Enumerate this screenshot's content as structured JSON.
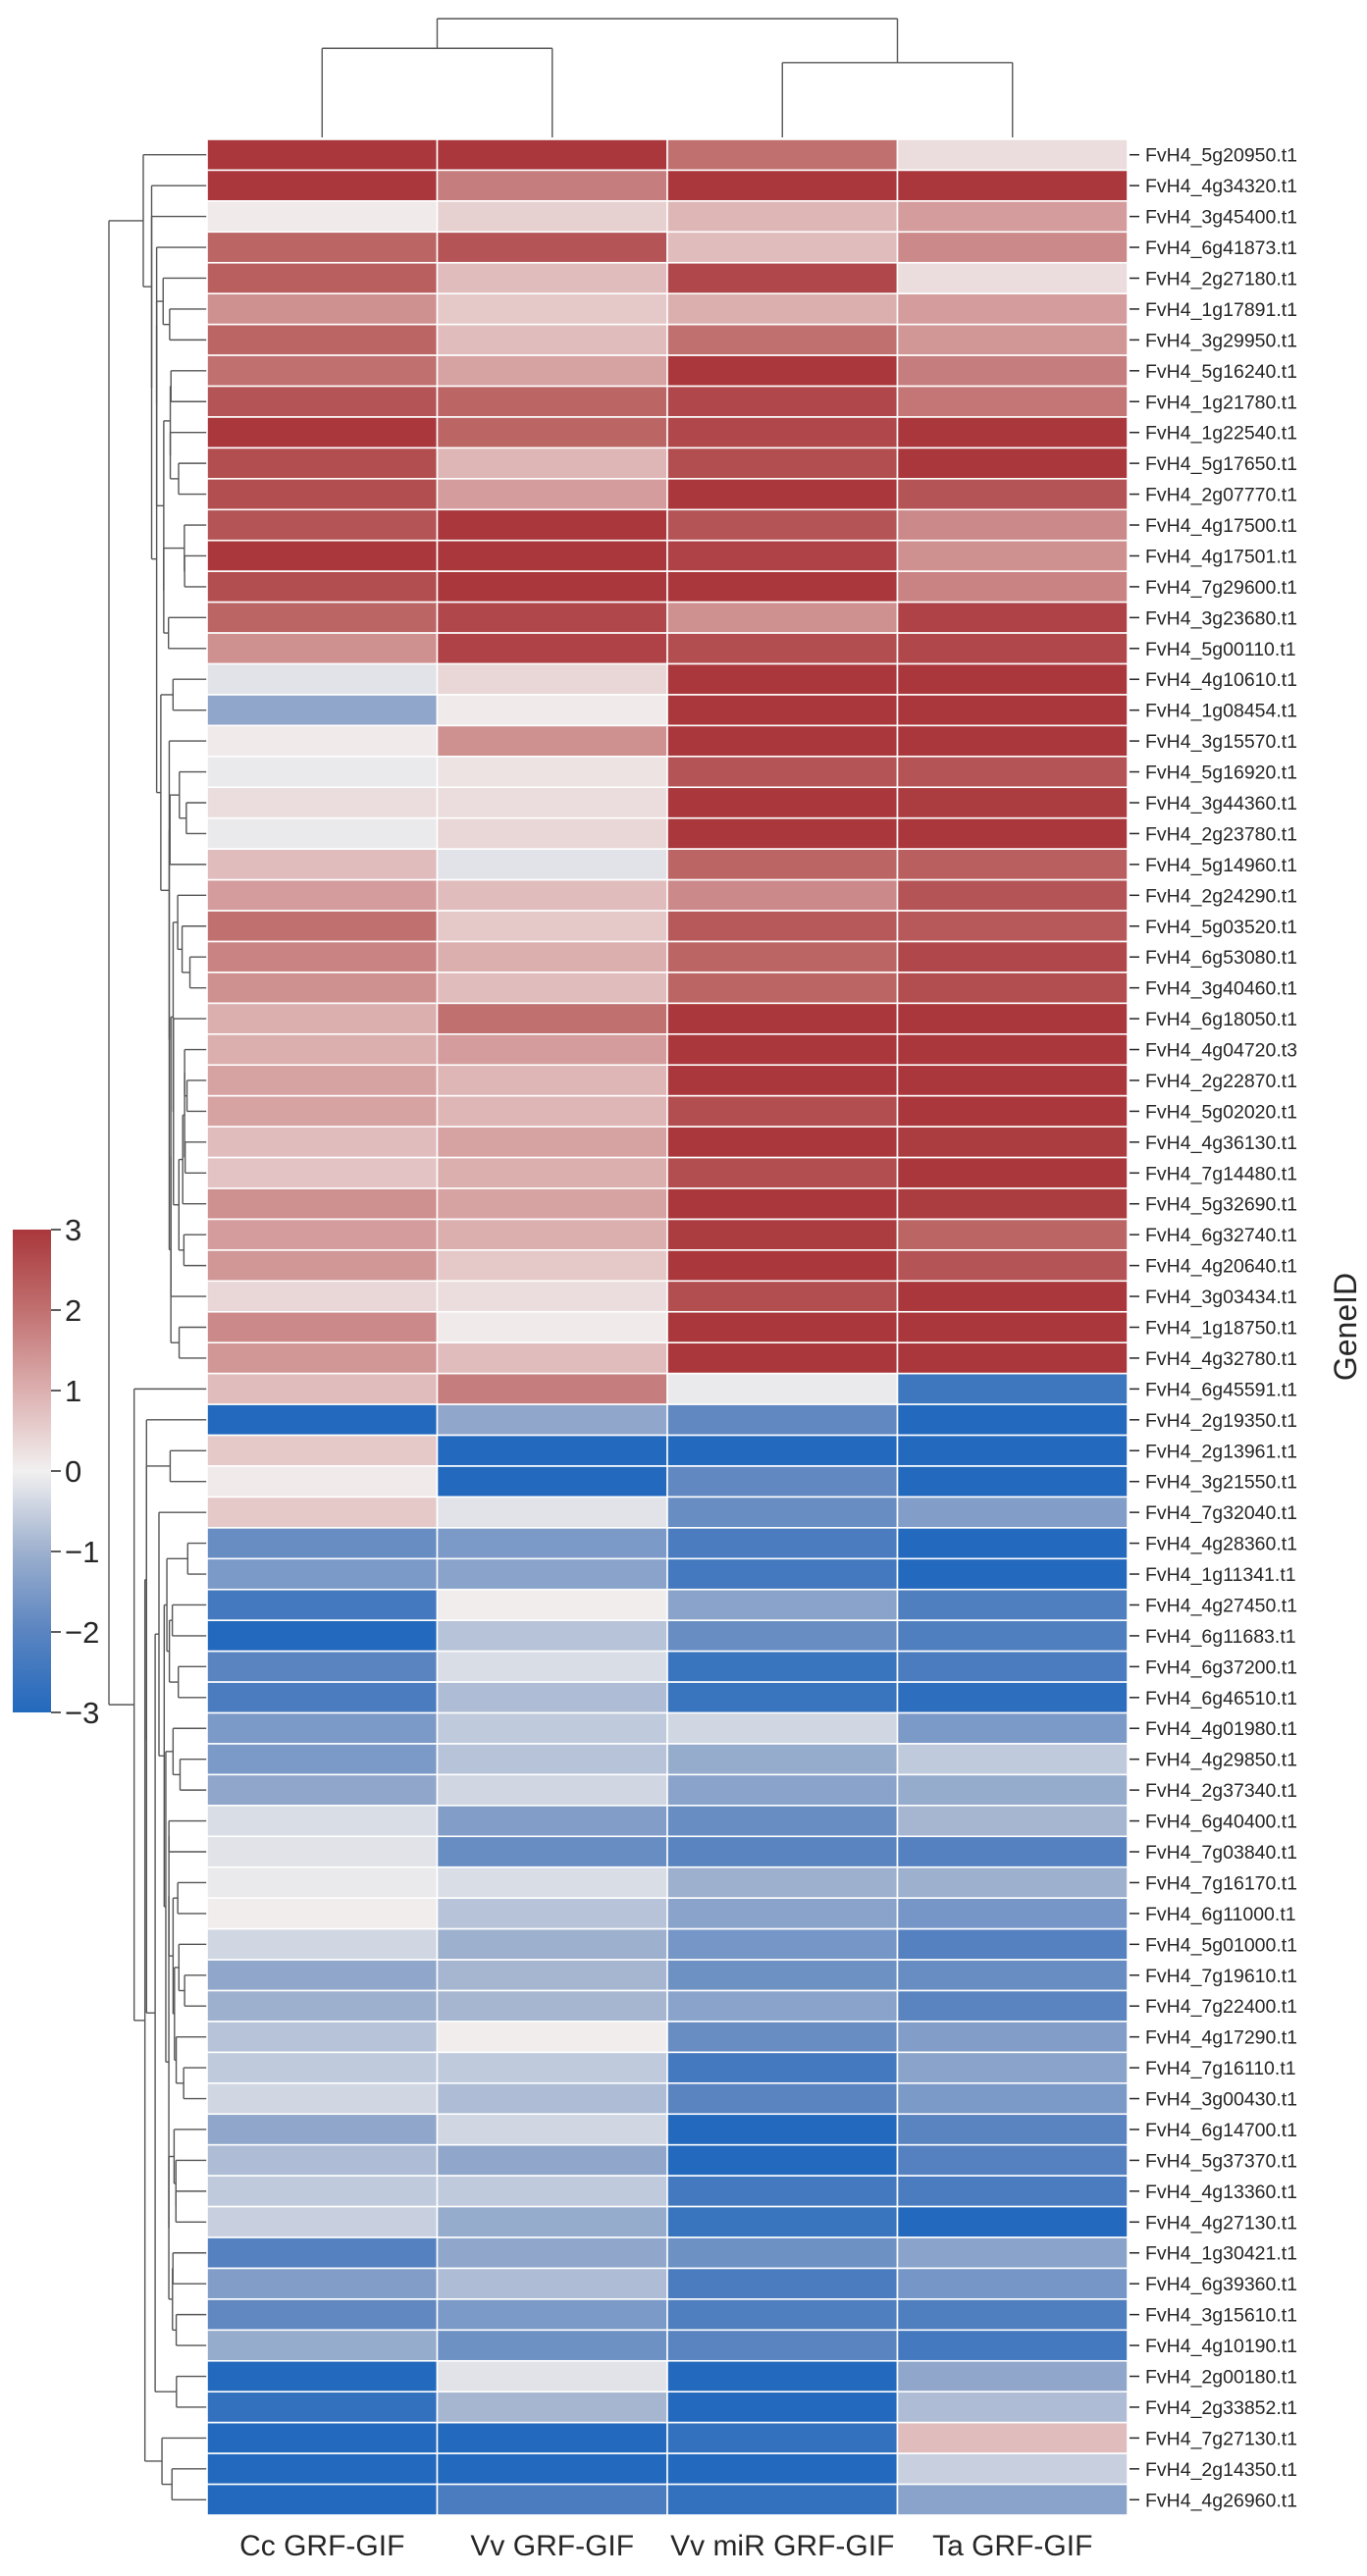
{
  "chart_data": {
    "type": "heatmap",
    "title": "",
    "xlabel": "",
    "ylabel": "GeneID",
    "columns": [
      "Cc GRF-GIF",
      "Vv GRF-GIF",
      "Vv miR GRF-GIF",
      "Ta GRF-GIF"
    ],
    "column_dendrogram": {
      "merges": [
        {
          "left": [
            0
          ],
          "right": [
            1
          ],
          "height": 0.75
        },
        {
          "left": [
            2
          ],
          "right": [
            3
          ],
          "height": 0.63
        },
        {
          "left": [
            0,
            1
          ],
          "right": [
            2,
            3
          ],
          "height": 1.0
        }
      ]
    },
    "colorbar": {
      "vmin": -3,
      "vmax": 3,
      "ticks": [
        3,
        2,
        1,
        0,
        -1,
        -2,
        -3
      ],
      "tick_labels": [
        "3",
        "2",
        "1",
        "0",
        "−1",
        "−2",
        "−3"
      ],
      "colors": {
        "low": "#2369BD",
        "mid": "#F2F0F0",
        "high": "#A9373B"
      },
      "placement": "left"
    },
    "rows": [
      {
        "gene": "FvH4_5g20950.t1",
        "values": [
          3.0,
          3.0,
          2.0,
          0.3
        ]
      },
      {
        "gene": "FvH4_4g34320.t1",
        "values": [
          3.0,
          1.8,
          3.0,
          3.0
        ]
      },
      {
        "gene": "FvH4_3g45400.t1",
        "values": [
          0.1,
          0.5,
          0.9,
          1.3
        ]
      },
      {
        "gene": "FvH4_6g41873.t1",
        "values": [
          2.2,
          2.5,
          0.8,
          1.6
        ]
      },
      {
        "gene": "FvH4_2g27180.t1",
        "values": [
          2.3,
          0.8,
          2.7,
          0.3
        ]
      },
      {
        "gene": "FvH4_1g17891.t1",
        "values": [
          1.5,
          0.6,
          1.0,
          1.3
        ]
      },
      {
        "gene": "FvH4_3g29950.t1",
        "values": [
          2.2,
          0.8,
          2.0,
          1.4
        ]
      },
      {
        "gene": "FvH4_5g16240.t1",
        "values": [
          2.0,
          1.2,
          3.0,
          1.8
        ]
      },
      {
        "gene": "FvH4_1g21780.t1",
        "values": [
          2.5,
          2.2,
          2.7,
          1.9
        ]
      },
      {
        "gene": "FvH4_1g22540.t1",
        "values": [
          3.0,
          2.2,
          2.7,
          3.0
        ]
      },
      {
        "gene": "FvH4_5g17650.t1",
        "values": [
          2.6,
          0.9,
          2.6,
          3.0
        ]
      },
      {
        "gene": "FvH4_2g07770.t1",
        "values": [
          2.6,
          1.3,
          3.0,
          2.5
        ]
      },
      {
        "gene": "FvH4_4g17500.t1",
        "values": [
          2.5,
          3.0,
          2.5,
          1.6
        ]
      },
      {
        "gene": "FvH4_4g17501.t1",
        "values": [
          3.0,
          3.0,
          2.8,
          1.5
        ]
      },
      {
        "gene": "FvH4_7g29600.t1",
        "values": [
          2.6,
          3.0,
          3.0,
          1.7
        ]
      },
      {
        "gene": "FvH4_3g23680.t1",
        "values": [
          2.2,
          2.7,
          1.5,
          2.8
        ]
      },
      {
        "gene": "FvH4_5g00110.t1",
        "values": [
          1.5,
          2.8,
          2.6,
          2.7
        ]
      },
      {
        "gene": "FvH4_4g10610.t1",
        "values": [
          -0.2,
          0.4,
          3.0,
          3.0
        ]
      },
      {
        "gene": "FvH4_1g08454.t1",
        "values": [
          -1.2,
          0.1,
          3.0,
          3.0
        ]
      },
      {
        "gene": "FvH4_3g15570.t1",
        "values": [
          0.1,
          1.5,
          3.0,
          3.0
        ]
      },
      {
        "gene": "FvH4_5g16920.t1",
        "values": [
          -0.1,
          0.2,
          2.5,
          2.5
        ]
      },
      {
        "gene": "FvH4_3g44360.t1",
        "values": [
          0.3,
          0.3,
          3.0,
          2.9
        ]
      },
      {
        "gene": "FvH4_2g23780.t1",
        "values": [
          -0.1,
          0.4,
          3.0,
          3.0
        ]
      },
      {
        "gene": "FvH4_5g14960.t1",
        "values": [
          0.8,
          -0.2,
          2.2,
          2.3
        ]
      },
      {
        "gene": "FvH4_2g24290.t1",
        "values": [
          1.3,
          0.8,
          1.6,
          2.5
        ]
      },
      {
        "gene": "FvH4_5g03520.t1",
        "values": [
          2.0,
          0.6,
          2.4,
          2.4
        ]
      },
      {
        "gene": "FvH4_6g53080.t1",
        "values": [
          1.7,
          1.0,
          2.2,
          2.7
        ]
      },
      {
        "gene": "FvH4_3g40460.t1",
        "values": [
          1.5,
          0.8,
          2.2,
          2.6
        ]
      },
      {
        "gene": "FvH4_6g18050.t1",
        "values": [
          1.0,
          2.0,
          3.0,
          3.0
        ]
      },
      {
        "gene": "FvH4_4g04720.t3",
        "values": [
          1.0,
          1.3,
          3.0,
          3.0
        ]
      },
      {
        "gene": "FvH4_2g22870.t1",
        "values": [
          1.2,
          0.9,
          3.0,
          3.0
        ]
      },
      {
        "gene": "FvH4_5g02020.t1",
        "values": [
          1.2,
          0.9,
          2.6,
          3.0
        ]
      },
      {
        "gene": "FvH4_4g36130.t1",
        "values": [
          0.8,
          1.2,
          3.0,
          2.9
        ]
      },
      {
        "gene": "FvH4_7g14480.t1",
        "values": [
          0.7,
          1.0,
          2.6,
          3.0
        ]
      },
      {
        "gene": "FvH4_5g32690.t1",
        "values": [
          1.5,
          1.2,
          3.0,
          2.9
        ]
      },
      {
        "gene": "FvH4_6g32740.t1",
        "values": [
          1.3,
          1.0,
          2.9,
          2.2
        ]
      },
      {
        "gene": "FvH4_4g20640.t1",
        "values": [
          1.4,
          0.6,
          3.0,
          2.5
        ]
      },
      {
        "gene": "FvH4_3g03434.t1",
        "values": [
          0.4,
          0.3,
          2.6,
          3.0
        ]
      },
      {
        "gene": "FvH4_1g18750.t1",
        "values": [
          1.6,
          0.1,
          3.0,
          3.0
        ]
      },
      {
        "gene": "FvH4_4g32780.t1",
        "values": [
          1.4,
          0.8,
          3.0,
          3.0
        ]
      },
      {
        "gene": "FvH4_6g45591.t1",
        "values": [
          0.8,
          1.8,
          -0.1,
          -2.5
        ]
      },
      {
        "gene": "FvH4_2g19350.t1",
        "values": [
          -3.0,
          -1.2,
          -1.9,
          -3.0
        ]
      },
      {
        "gene": "FvH4_2g13961.t1",
        "values": [
          0.6,
          -3.0,
          -3.0,
          -3.0
        ]
      },
      {
        "gene": "FvH4_3g21550.t1",
        "values": [
          0.1,
          -3.0,
          -1.9,
          -3.0
        ]
      },
      {
        "gene": "FvH4_7g32040.t1",
        "values": [
          0.6,
          -0.2,
          -1.8,
          -1.4
        ]
      },
      {
        "gene": "FvH4_4g28360.t1",
        "values": [
          -1.8,
          -1.5,
          -2.3,
          -3.0
        ]
      },
      {
        "gene": "FvH4_1g11341.t1",
        "values": [
          -1.5,
          -1.3,
          -2.4,
          -3.0
        ]
      },
      {
        "gene": "FvH4_4g27450.t1",
        "values": [
          -2.4,
          0.05,
          -1.3,
          -2.2
        ]
      },
      {
        "gene": "FvH4_6g11683.t1",
        "values": [
          -3.0,
          -0.7,
          -1.8,
          -2.2
        ]
      },
      {
        "gene": "FvH4_6g37200.t1",
        "values": [
          -2.0,
          -0.3,
          -2.6,
          -2.3
        ]
      },
      {
        "gene": "FvH4_6g46510.t1",
        "values": [
          -2.3,
          -0.8,
          -2.6,
          -2.8
        ]
      },
      {
        "gene": "FvH4_4g01980.t1",
        "values": [
          -1.5,
          -0.6,
          -0.4,
          -1.5
        ]
      },
      {
        "gene": "FvH4_4g29850.t1",
        "values": [
          -1.5,
          -0.7,
          -1.1,
          -0.6
        ]
      },
      {
        "gene": "FvH4_2g37340.t1",
        "values": [
          -1.2,
          -0.4,
          -1.3,
          -1.1
        ]
      },
      {
        "gene": "FvH4_6g40400.t1",
        "values": [
          -0.3,
          -1.4,
          -1.8,
          -0.9
        ]
      },
      {
        "gene": "FvH4_7g03840.t1",
        "values": [
          -0.2,
          -1.8,
          -2.0,
          -2.1
        ]
      },
      {
        "gene": "FvH4_7g16170.t1",
        "values": [
          -0.1,
          -0.3,
          -1.0,
          -1.0
        ]
      },
      {
        "gene": "FvH4_6g11000.t1",
        "values": [
          0.05,
          -0.7,
          -1.3,
          -1.6
        ]
      },
      {
        "gene": "FvH4_5g01000.t1",
        "values": [
          -0.4,
          -1.0,
          -1.6,
          -2.1
        ]
      },
      {
        "gene": "FvH4_7g19610.t1",
        "values": [
          -1.2,
          -0.9,
          -1.7,
          -1.8
        ]
      },
      {
        "gene": "FvH4_7g22400.t1",
        "values": [
          -1.0,
          -0.9,
          -1.3,
          -2.0
        ]
      },
      {
        "gene": "FvH4_4g17290.t1",
        "values": [
          -0.7,
          0.05,
          -1.8,
          -1.4
        ]
      },
      {
        "gene": "FvH4_7g16110.t1",
        "values": [
          -0.6,
          -0.6,
          -2.4,
          -1.3
        ]
      },
      {
        "gene": "FvH4_3g00430.t1",
        "values": [
          -0.4,
          -0.8,
          -2.0,
          -1.5
        ]
      },
      {
        "gene": "FvH4_6g14700.t1",
        "values": [
          -1.2,
          -0.4,
          -3.0,
          -2.0
        ]
      },
      {
        "gene": "FvH4_5g37370.t1",
        "values": [
          -0.8,
          -1.2,
          -3.0,
          -2.1
        ]
      },
      {
        "gene": "FvH4_4g13360.t1",
        "values": [
          -0.6,
          -0.6,
          -2.4,
          -2.3
        ]
      },
      {
        "gene": "FvH4_4g27130.t1",
        "values": [
          -0.5,
          -1.1,
          -2.6,
          -3.0
        ]
      },
      {
        "gene": "FvH4_1g30421.t1",
        "values": [
          -2.1,
          -1.2,
          -1.7,
          -1.3
        ]
      },
      {
        "gene": "FvH4_6g39360.t1",
        "values": [
          -1.4,
          -0.8,
          -2.3,
          -1.6
        ]
      },
      {
        "gene": "FvH4_3g15610.t1",
        "values": [
          -1.9,
          -1.5,
          -2.2,
          -2.2
        ]
      },
      {
        "gene": "FvH4_4g10190.t1",
        "values": [
          -1.1,
          -1.7,
          -2.0,
          -2.4
        ]
      },
      {
        "gene": "FvH4_2g00180.t1",
        "values": [
          -3.0,
          -0.2,
          -3.0,
          -1.2
        ]
      },
      {
        "gene": "FvH4_2g33852.t1",
        "values": [
          -2.7,
          -0.9,
          -3.0,
          -0.8
        ]
      },
      {
        "gene": "FvH4_7g27130.t1",
        "values": [
          -3.0,
          -3.0,
          -2.7,
          0.8
        ]
      },
      {
        "gene": "FvH4_2g14350.t1",
        "values": [
          -3.0,
          -3.0,
          -3.0,
          -0.5
        ]
      },
      {
        "gene": "FvH4_4g26960.t1",
        "values": [
          -3.0,
          -2.3,
          -2.7,
          -1.3
        ]
      }
    ],
    "row_clusters": {
      "split_after_row": 40,
      "description_order": "rows listed top to bottom in dendrogram leaf order"
    }
  }
}
